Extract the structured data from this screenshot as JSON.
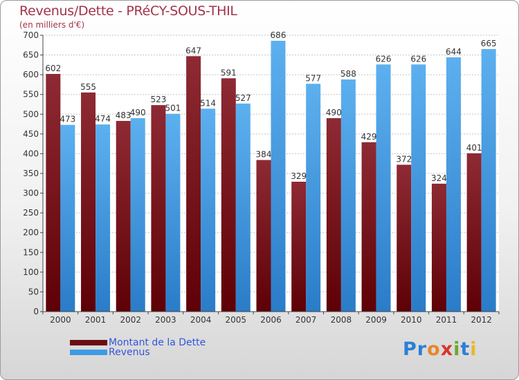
{
  "chart_data": {
    "type": "bar",
    "title": "Revenus/Dette - PRéCY-SOUS-THIL",
    "subtitle": "(en milliers d'€)",
    "categories": [
      "2000",
      "2001",
      "2002",
      "2003",
      "2004",
      "2005",
      "2006",
      "2007",
      "2008",
      "2009",
      "2010",
      "2011",
      "2012"
    ],
    "series": [
      {
        "name": "Montant de la Dette",
        "color": "#8b1a22",
        "values": [
          602,
          555,
          483,
          523,
          647,
          591,
          384,
          329,
          490,
          429,
          372,
          324,
          401
        ]
      },
      {
        "name": "Revenus",
        "color": "#2b8ad8",
        "values": [
          473,
          474,
          490,
          501,
          514,
          527,
          686,
          577,
          588,
          626,
          626,
          644,
          665
        ]
      }
    ],
    "yticks": [
      0,
      50,
      100,
      150,
      200,
      250,
      300,
      350,
      400,
      450,
      500,
      550,
      600,
      650,
      700
    ],
    "ylim": [
      0,
      700
    ],
    "grid": true,
    "legend_position": "bottom-left"
  },
  "legend": {
    "items": [
      {
        "label": "Montant de la Dette",
        "color": "#6b0e14"
      },
      {
        "label": "Revenus",
        "color": "#3f9be4"
      }
    ]
  },
  "logo": {
    "text": "Proxiti"
  }
}
